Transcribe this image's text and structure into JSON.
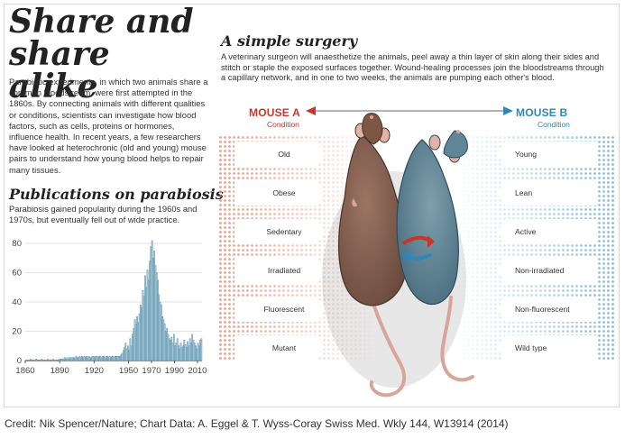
{
  "title_line1": "Share and",
  "title_line2": "share alike",
  "intro": "Parabiotic experiments, in which two animals share a common bloodstream, were first attempted in the 1860s. By connecting animals with different qualities or conditions, scientists can investigate how blood factors, such as cells, proteins or hormones, influence health. In recent years, a few researchers have looked at heterochronic (old and young) mouse pairs to understand how young blood helps to repair many tissues.",
  "publications": {
    "title": "Publications on parabiosis",
    "description": "Parabiosis gained popularity during the 1960s and 1970s, but eventually fell out of wide practice."
  },
  "surgery": {
    "title": "A simple surgery",
    "description": "A veterinary surgeon will anaesthetize the animals, peel away a thin layer of skin along their sides and stitch or staple the exposed surfaces together. Wound-healing processes join the bloodstreams through a capillary network, and in one to two weeks, the animals are pumping each other's blood."
  },
  "mouse_a": {
    "label": "MOUSE A",
    "condition_label": "Condition",
    "conditions": [
      "Old",
      "Obese",
      "Sedentary",
      "Irradiated",
      "Fluorescent",
      "Mutant"
    ]
  },
  "mouse_b": {
    "label": "MOUSE B",
    "condition_label": "Condition",
    "conditions": [
      "Young",
      "Lean",
      "Active",
      "Non-irradiated",
      "Non-fluorescent",
      "Wild type"
    ]
  },
  "colors": {
    "mouse_a": "#c8352b",
    "mouse_b": "#2f86b8",
    "bars": "#a9cfe0",
    "bar_stroke": "#4f7f95"
  },
  "credit": "Credit: Nik Spencer/Nature; Chart Data: A. Eggel & T. Wyss-Coray Swiss Med. Wkly 144, W13914 (2014)",
  "chart_data": {
    "type": "bar",
    "title": "Publications on parabiosis",
    "xlabel": "",
    "ylabel": "",
    "x_ticks": [
      "1860",
      "1890",
      "1920",
      "1950",
      "1970",
      "1990",
      "2010"
    ],
    "y_ticks": [
      "0",
      "20",
      "40",
      "60",
      "80"
    ],
    "xlim": [
      1860,
      2014
    ],
    "ylim": [
      0,
      85
    ],
    "grid": "horizontal",
    "x": [
      1860,
      1861,
      1862,
      1863,
      1864,
      1865,
      1866,
      1867,
      1868,
      1869,
      1870,
      1871,
      1872,
      1873,
      1874,
      1875,
      1876,
      1877,
      1878,
      1879,
      1880,
      1881,
      1882,
      1883,
      1884,
      1885,
      1886,
      1887,
      1888,
      1889,
      1890,
      1891,
      1892,
      1893,
      1894,
      1895,
      1896,
      1897,
      1898,
      1899,
      1900,
      1901,
      1902,
      1903,
      1904,
      1905,
      1906,
      1907,
      1908,
      1909,
      1910,
      1911,
      1912,
      1913,
      1914,
      1915,
      1916,
      1917,
      1918,
      1919,
      1920,
      1921,
      1922,
      1923,
      1924,
      1925,
      1926,
      1927,
      1928,
      1929,
      1930,
      1931,
      1932,
      1933,
      1934,
      1935,
      1936,
      1937,
      1938,
      1939,
      1940,
      1941,
      1942,
      1943,
      1944,
      1945,
      1946,
      1947,
      1948,
      1949,
      1950,
      1951,
      1952,
      1953,
      1954,
      1955,
      1956,
      1957,
      1958,
      1959,
      1960,
      1961,
      1962,
      1963,
      1964,
      1965,
      1966,
      1967,
      1968,
      1969,
      1970,
      1971,
      1972,
      1973,
      1974,
      1975,
      1976,
      1977,
      1978,
      1979,
      1980,
      1981,
      1982,
      1983,
      1984,
      1985,
      1986,
      1987,
      1988,
      1989,
      1990,
      1991,
      1992,
      1993,
      1994,
      1995,
      1996,
      1997,
      1998,
      1999,
      2000,
      2001,
      2002,
      2003,
      2004,
      2005,
      2006,
      2007,
      2008,
      2009,
      2010,
      2011,
      2012,
      2013
    ],
    "values": [
      0,
      0,
      0,
      0,
      1,
      0,
      0,
      0,
      0,
      1,
      0,
      0,
      0,
      0,
      1,
      0,
      0,
      0,
      0,
      1,
      0,
      0,
      0,
      0,
      1,
      0,
      0,
      0,
      0,
      1,
      1,
      1,
      1,
      1,
      2,
      1,
      2,
      1,
      2,
      2,
      2,
      2,
      2,
      2,
      3,
      2,
      2,
      3,
      2,
      3,
      2,
      3,
      2,
      3,
      2,
      3,
      2,
      2,
      3,
      3,
      2,
      3,
      3,
      2,
      3,
      3,
      2,
      3,
      3,
      2,
      3,
      3,
      2,
      3,
      2,
      3,
      3,
      2,
      3,
      3,
      3,
      3,
      3,
      4,
      5,
      7,
      9,
      12,
      8,
      10,
      7,
      15,
      10,
      18,
      22,
      28,
      25,
      30,
      26,
      32,
      38,
      36,
      48,
      44,
      58,
      50,
      62,
      55,
      68,
      78,
      82,
      70,
      75,
      65,
      60,
      55,
      45,
      40,
      38,
      30,
      28,
      25,
      20,
      22,
      18,
      15,
      14,
      16,
      12,
      18,
      10,
      12,
      15,
      10,
      8,
      12,
      9,
      10,
      14,
      11,
      9,
      13,
      10,
      15,
      12,
      18,
      14,
      12,
      10,
      8,
      12,
      10,
      14,
      15
    ]
  }
}
